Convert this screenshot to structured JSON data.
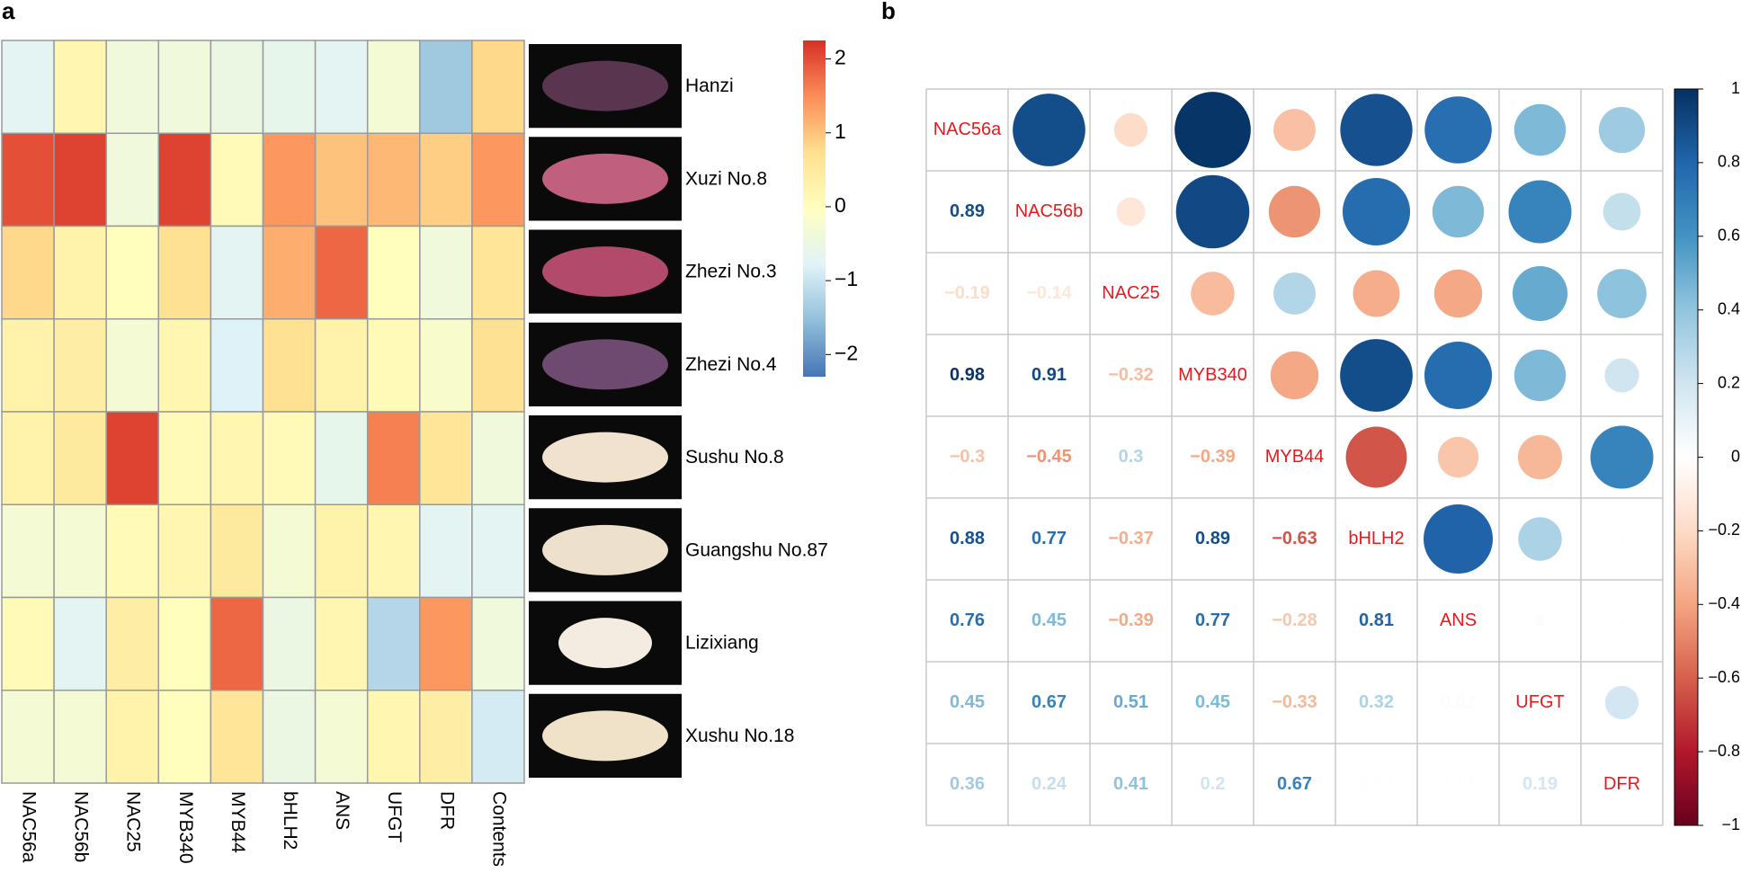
{
  "chart_data": [
    {
      "type": "heatmap",
      "panel_label": "a",
      "rows": [
        "Hanzi",
        "Xuzi No.8",
        "Zhezi No.3",
        "Zhezi No.4",
        "Sushu No.8",
        "Guangshu No.87",
        "Lizixiang",
        "Xushu No.18"
      ],
      "columns": [
        "NAC56a",
        "NAC56b",
        "NAC25",
        "MYB340",
        "MYB44",
        "bHLH2",
        "ANS",
        "UFGT",
        "DFR",
        "Contents"
      ],
      "values": [
        [
          -0.7,
          0.2,
          -0.4,
          -0.4,
          -0.5,
          -0.6,
          -0.7,
          -0.3,
          -1.4,
          0.8
        ],
        [
          2.0,
          2.1,
          -0.4,
          2.1,
          0.1,
          1.4,
          1.0,
          1.1,
          0.9,
          1.4
        ],
        [
          0.8,
          0.3,
          0.0,
          0.7,
          -0.7,
          1.2,
          1.8,
          0.0,
          -0.4,
          0.6
        ],
        [
          0.3,
          0.4,
          -0.3,
          0.2,
          -0.8,
          0.7,
          0.3,
          0.1,
          -0.2,
          0.7
        ],
        [
          0.3,
          0.5,
          2.1,
          0.1,
          0.2,
          0.1,
          -0.6,
          1.6,
          0.6,
          -0.4
        ],
        [
          -0.3,
          -0.3,
          0.1,
          0.2,
          0.5,
          -0.3,
          0.3,
          0.2,
          -0.7,
          -0.7
        ],
        [
          0.1,
          -0.7,
          0.4,
          0.0,
          1.8,
          -0.5,
          0.2,
          -1.2,
          1.4,
          -0.4
        ],
        [
          -0.3,
          -0.3,
          0.3,
          0.0,
          0.6,
          -0.5,
          -0.3,
          0.2,
          0.4,
          -0.9
        ]
      ],
      "colormap": [
        "#4575b4",
        "#91bfdb",
        "#e0f3f8",
        "#ffffbf",
        "#fee090",
        "#fc8d59",
        "#d73027"
      ],
      "zlim": [
        -2.3,
        2.25
      ],
      "zticks": [
        {
          "value": -2,
          "label": "−2"
        },
        {
          "value": -1,
          "label": "−1"
        },
        0,
        1,
        2
      ]
    },
    {
      "type": "correlogram",
      "panel_label": "b",
      "variables": [
        "NAC56a",
        "NAC56b",
        "NAC25",
        "MYB340",
        "MYB44",
        "bHLH2",
        "ANS",
        "UFGT",
        "DFR"
      ],
      "values": [
        [
          0.89
        ],
        [
          -0.19,
          -0.14
        ],
        [
          0.98,
          0.91,
          -0.32
        ],
        [
          -0.3,
          -0.45,
          0.3,
          -0.39
        ],
        [
          0.88,
          0.77,
          -0.37,
          0.89,
          -0.63
        ],
        [
          0.76,
          0.45,
          -0.39,
          0.77,
          -0.28,
          0.81
        ],
        [
          0.45,
          0.67,
          0.51,
          0.45,
          -0.33,
          0.32,
          0.02
        ],
        [
          0.36,
          0.24,
          0.41,
          0.2,
          0.67,
          0.01,
          0.01,
          0.19
        ]
      ],
      "value_labels": [
        [
          "0.89"
        ],
        [
          "−0.19",
          "−0.14"
        ],
        [
          "0.98",
          "0.91",
          "−0.32"
        ],
        [
          "−0.3",
          "−0.45",
          "0.3",
          "−0.39"
        ],
        [
          "0.88",
          "0.77",
          "−0.37",
          "0.89",
          "−0.63"
        ],
        [
          "0.76",
          "0.45",
          "−0.39",
          "0.77",
          "−0.28",
          "0.81"
        ],
        [
          "0.45",
          "0.67",
          "0.51",
          "0.45",
          "−0.33",
          "0.32",
          "0.02"
        ],
        [
          "0.36",
          "0.24",
          "0.41",
          "0.2",
          "0.67",
          "0.01",
          "0.01",
          "0.19"
        ]
      ],
      "colormap": [
        "#67001f",
        "#b2182b",
        "#d6604d",
        "#f4a582",
        "#fddbc7",
        "#ffffff",
        "#d1e5f0",
        "#92c5de",
        "#4393c3",
        "#2166ac",
        "#053061"
      ],
      "zlim": [
        -1,
        1
      ],
      "zticks": [
        {
          "value": -1,
          "label": "−1"
        },
        {
          "value": -0.8,
          "label": "−0.8"
        },
        {
          "value": -0.6,
          "label": "−0.6"
        },
        {
          "value": -0.4,
          "label": "−0.4"
        },
        {
          "value": -0.2,
          "label": "−0.2"
        },
        0,
        0.2,
        0.4,
        0.6,
        0.8,
        1
      ]
    }
  ]
}
